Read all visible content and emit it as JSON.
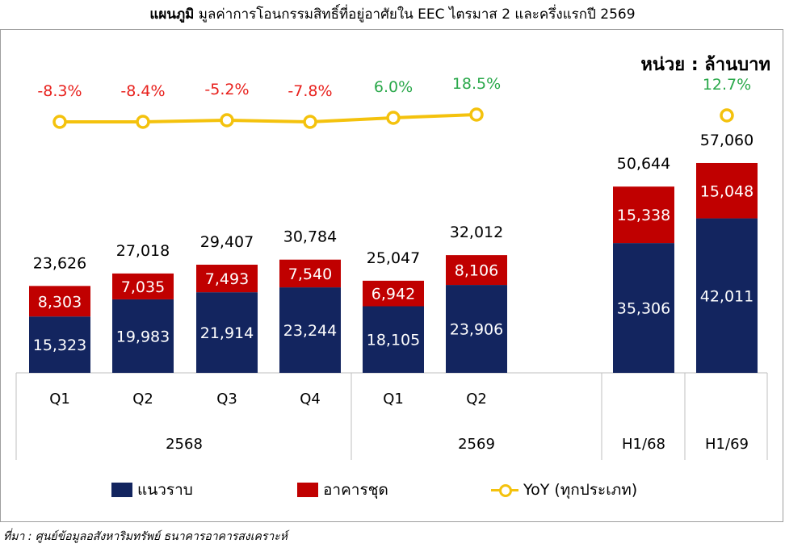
{
  "header": {
    "title_bold": "แผนภูมิ",
    "title_rest": " มูลค่าการโอนกรรมสิทธิ์ที่อยู่อาศัยใน EEC ไตรมาส 2 และครึ่งแรกปี 2569",
    "unit": "หน่วย : ล้านบาท"
  },
  "legend": {
    "land": "แนวราบ",
    "condo": "อาคารชุด",
    "yoy": "YoY (ทุกประเภท)"
  },
  "source": "ที่มา : ศูนย์ข้อมูลอสังหาริมทรัพย์ ธนาคารอาคารสงเคราะห์",
  "colors": {
    "land": "#13255f",
    "condo": "#c00000",
    "yoy_line": "#f4c20d",
    "yoy_negative": "#e8211d",
    "yoy_positive": "#2aa84a"
  },
  "chart_data": {
    "type": "bar",
    "stacked": true,
    "categories": [
      "Q1",
      "Q2",
      "Q3",
      "Q4",
      "Q1",
      "Q2",
      "H1/68",
      "H1/69"
    ],
    "groups": [
      {
        "label": "2568",
        "categories": [
          "Q1",
          "Q2",
          "Q3",
          "Q4"
        ]
      },
      {
        "label": "2569",
        "categories": [
          "Q1",
          "Q2"
        ]
      }
    ],
    "series": [
      {
        "name": "แนวราบ",
        "values": [
          15323,
          19983,
          21914,
          23244,
          18105,
          23906,
          35306,
          42011
        ],
        "labels": [
          "15,323",
          "19,983",
          "21,914",
          "23,244",
          "18,105",
          "23,906",
          "35,306",
          "42,011"
        ]
      },
      {
        "name": "อาคารชุด",
        "values": [
          8303,
          7035,
          7493,
          7540,
          6942,
          8106,
          15338,
          15048
        ],
        "labels": [
          "8,303",
          "7,035",
          "7,493",
          "7,540",
          "6,942",
          "8,106",
          "15,338",
          "15,048"
        ]
      }
    ],
    "totals": [
      23626,
      27018,
      29407,
      30784,
      25047,
      32012,
      50644,
      57060
    ],
    "total_labels": [
      "23,626",
      "27,018",
      "29,407",
      "30,784",
      "25,047",
      "32,012",
      "50,644",
      "57,060"
    ],
    "yoy": {
      "name": "YoY (ทุกประเภท)",
      "values": [
        -8.3,
        -8.4,
        -5.2,
        -7.8,
        6.0,
        18.5,
        null,
        12.7
      ],
      "labels": [
        "-8.3%",
        "-8.4%",
        "-5.2%",
        "-7.8%",
        "6.0%",
        "18.5%",
        "",
        "12.7%"
      ]
    }
  }
}
